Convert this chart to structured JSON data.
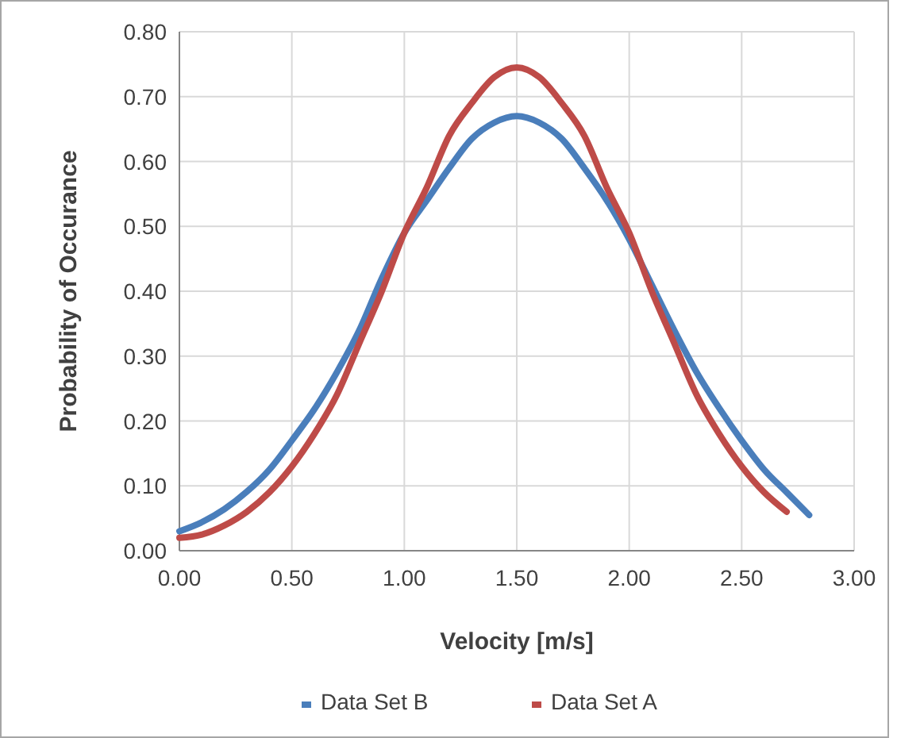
{
  "chart_data": {
    "type": "line",
    "xlabel": "Velocity [m/s]",
    "ylabel": "Probability of Occurance",
    "xlim": [
      0,
      3
    ],
    "xticks": [
      {
        "value": 0,
        "label": "0.00"
      },
      {
        "value": 0.5,
        "label": "0.50"
      },
      {
        "value": 1,
        "label": "1.00"
      },
      {
        "value": 1.5,
        "label": "1.50"
      },
      {
        "value": 2,
        "label": "2.00"
      },
      {
        "value": 2.5,
        "label": "2.50"
      },
      {
        "value": 3,
        "label": "3.00"
      }
    ],
    "ylim": [
      0,
      0.8
    ],
    "yticks": [
      {
        "value": 0,
        "label": "0.00"
      },
      {
        "value": 0.1,
        "label": "0.10"
      },
      {
        "value": 0.2,
        "label": "0.20"
      },
      {
        "value": 0.3,
        "label": "0.30"
      },
      {
        "value": 0.4,
        "label": "0.40"
      },
      {
        "value": 0.5,
        "label": "0.50"
      },
      {
        "value": 0.6,
        "label": "0.60"
      },
      {
        "value": 0.7,
        "label": "0.70"
      },
      {
        "value": 0.8,
        "label": "0.80"
      }
    ],
    "grid": true,
    "legend": "bottom",
    "marker": "none",
    "line_style": "solid",
    "series": [
      {
        "name": "Data Set B",
        "color": "#4a7ebb",
        "x": [
          0,
          0.1,
          0.2,
          0.3,
          0.4,
          0.5,
          0.6,
          0.7,
          0.8,
          0.9,
          1,
          1.1,
          1.2,
          1.3,
          1.4,
          1.5,
          1.6,
          1.7,
          1.8,
          1.9,
          2,
          2.1,
          2.2,
          2.3,
          2.4,
          2.5,
          2.6,
          2.7,
          2.8
        ],
        "values": [
          0.03,
          0.044,
          0.064,
          0.091,
          0.125,
          0.17,
          0.218,
          0.275,
          0.34,
          0.42,
          0.49,
          0.54,
          0.59,
          0.635,
          0.66,
          0.67,
          0.66,
          0.635,
          0.59,
          0.54,
          0.48,
          0.41,
          0.34,
          0.275,
          0.22,
          0.17,
          0.125,
          0.09,
          0.055
        ]
      },
      {
        "name": "Data Set A",
        "color": "#be4b48",
        "x": [
          0,
          0.1,
          0.2,
          0.3,
          0.4,
          0.5,
          0.6,
          0.7,
          0.8,
          0.9,
          1,
          1.1,
          1.2,
          1.3,
          1.4,
          1.5,
          1.6,
          1.7,
          1.8,
          1.9,
          2,
          2.1,
          2.2,
          2.3,
          2.4,
          2.5,
          2.6,
          2.7
        ],
        "values": [
          0.02,
          0.025,
          0.039,
          0.06,
          0.09,
          0.13,
          0.18,
          0.24,
          0.32,
          0.4,
          0.49,
          0.56,
          0.64,
          0.69,
          0.73,
          0.745,
          0.73,
          0.69,
          0.64,
          0.56,
          0.49,
          0.4,
          0.32,
          0.24,
          0.18,
          0.13,
          0.09,
          0.06
        ]
      }
    ]
  }
}
